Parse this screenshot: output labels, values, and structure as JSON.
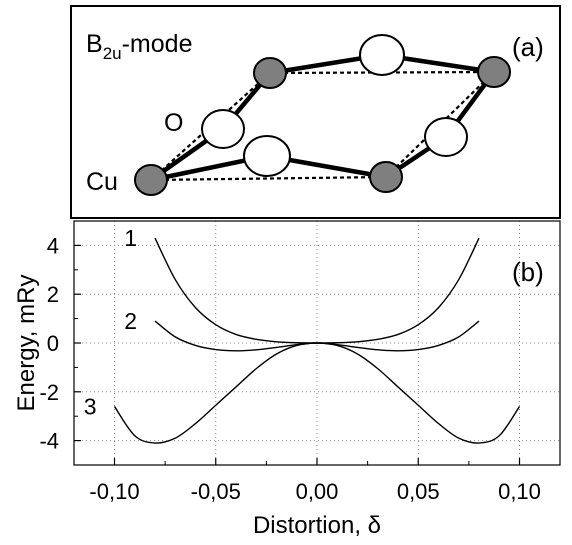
{
  "panel_a": {
    "label": "(a)",
    "mode": {
      "base": "B",
      "sub": "2u",
      "suffix": "-mode"
    },
    "atom_labels": {
      "oxygen": "O",
      "copper": "Cu"
    },
    "colors": {
      "copper_fill": "#7f7f7f",
      "oxygen_fill": "#ffffff",
      "bond": "#000000"
    }
  },
  "chart_data": {
    "type": "line",
    "panel_label": "(b)",
    "xlabel": "Distortion, δ",
    "ylabel": "Energy, mRy",
    "xlim": [
      -0.12,
      0.12
    ],
    "ylim": [
      -5,
      5
    ],
    "xticks": [
      -0.1,
      -0.05,
      0.0,
      0.05,
      0.1
    ],
    "xtick_labels": [
      "-0,10",
      "-0,05",
      "0,00",
      "0,05",
      "0,10"
    ],
    "yticks": [
      -4,
      -2,
      0,
      2,
      4
    ],
    "ytick_labels": [
      "-4",
      "-2",
      "0",
      "2",
      "4"
    ],
    "grid": true,
    "series": [
      {
        "name": "1",
        "x": [
          -0.08,
          -0.07,
          -0.06,
          -0.05,
          -0.04,
          -0.03,
          -0.02,
          -0.01,
          0.0,
          0.01,
          0.02,
          0.03,
          0.04,
          0.05,
          0.06,
          0.07,
          0.08
        ],
        "y": [
          4.3,
          2.6,
          1.45,
          0.75,
          0.35,
          0.15,
          0.05,
          0.01,
          0.0,
          0.01,
          0.05,
          0.15,
          0.35,
          0.75,
          1.45,
          2.6,
          4.3
        ]
      },
      {
        "name": "2",
        "x": [
          -0.08,
          -0.07,
          -0.06,
          -0.05,
          -0.04,
          -0.03,
          -0.02,
          -0.01,
          0.0,
          0.01,
          0.02,
          0.03,
          0.04,
          0.05,
          0.06,
          0.07,
          0.08
        ],
        "y": [
          0.9,
          0.25,
          -0.1,
          -0.27,
          -0.32,
          -0.28,
          -0.18,
          -0.07,
          0.0,
          -0.07,
          -0.18,
          -0.28,
          -0.32,
          -0.27,
          -0.1,
          0.25,
          0.9
        ]
      },
      {
        "name": "3",
        "x": [
          -0.1,
          -0.09,
          -0.08,
          -0.07,
          -0.06,
          -0.05,
          -0.04,
          -0.03,
          -0.02,
          -0.01,
          0.0,
          0.01,
          0.02,
          0.03,
          0.04,
          0.05,
          0.06,
          0.07,
          0.08,
          0.09,
          0.1
        ],
        "y": [
          -2.6,
          -3.8,
          -4.1,
          -3.9,
          -3.3,
          -2.55,
          -1.8,
          -1.05,
          -0.45,
          -0.1,
          0.0,
          -0.1,
          -0.45,
          -1.05,
          -1.8,
          -2.55,
          -3.3,
          -3.9,
          -4.1,
          -3.8,
          -2.6
        ]
      }
    ]
  }
}
